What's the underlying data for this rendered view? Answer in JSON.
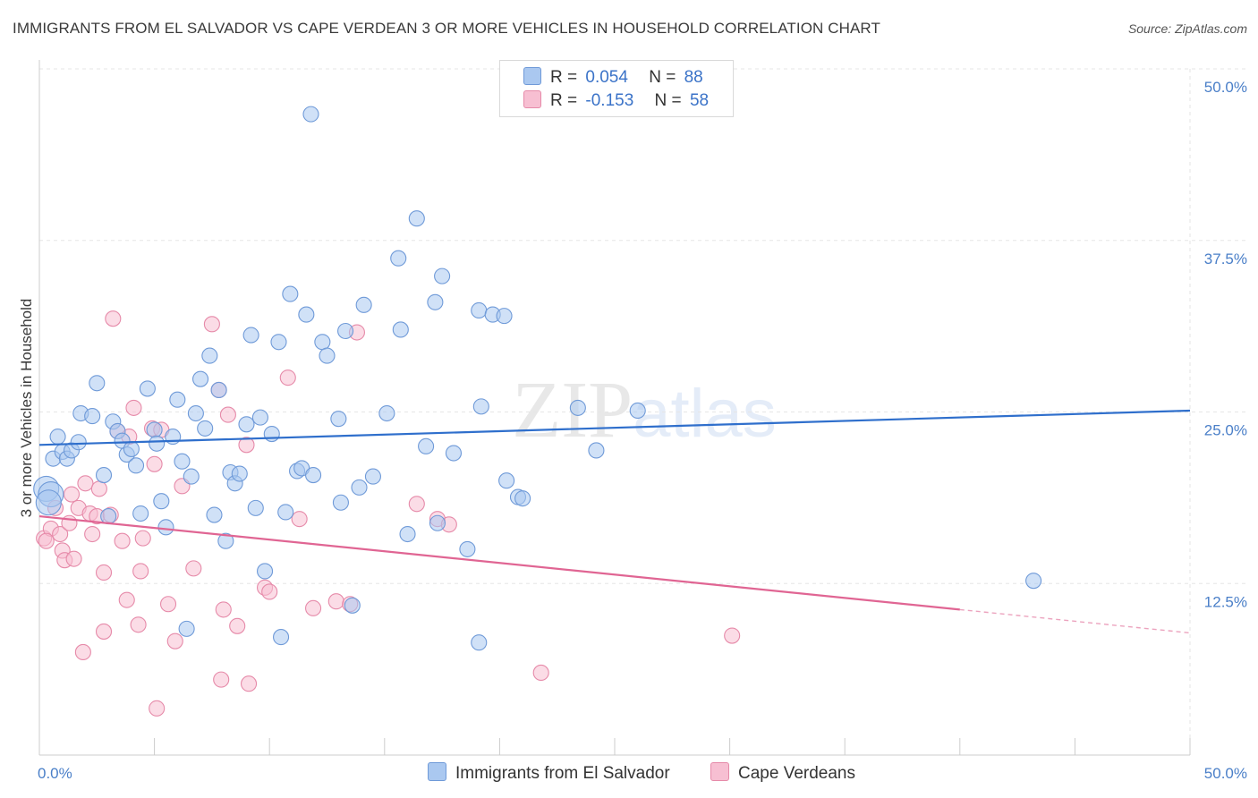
{
  "header": {
    "title": "IMMIGRANTS FROM EL SALVADOR VS CAPE VERDEAN 3 OR MORE VEHICLES IN HOUSEHOLD CORRELATION CHART",
    "source": "Source: ZipAtlas.com"
  },
  "watermark": "ZIPatlas",
  "legend": {
    "rows": [
      {
        "r_label": "R =",
        "r_value": "0.054",
        "n_label": "N =",
        "n_value": "88"
      },
      {
        "r_label": "R =",
        "r_value": "-0.153",
        "n_label": "N =",
        "n_value": "58"
      }
    ]
  },
  "colors": {
    "blue_fill": "#aac8f0",
    "blue_stroke": "#6f9ad8",
    "blue_line": "#2f6fcc",
    "pink_fill": "#f7bfd2",
    "pink_stroke": "#e68aa9",
    "pink_line": "#e06593",
    "grid": "#e6e6e6",
    "axis_text": "#4a7fc8"
  },
  "chart_data": {
    "type": "scatter",
    "title": "IMMIGRANTS FROM EL SALVADOR VS CAPE VERDEAN 3 OR MORE VEHICLES IN HOUSEHOLD CORRELATION CHART",
    "xlabel": "",
    "ylabel": "3 or more Vehicles in Household",
    "xlim": [
      0,
      50
    ],
    "ylim": [
      0,
      50
    ],
    "x_tick_labels": [
      "0.0%",
      "50.0%"
    ],
    "y_ticks": [
      12.5,
      25.0,
      37.5,
      50.0
    ],
    "y_tick_labels": [
      "12.5%",
      "25.0%",
      "37.5%",
      "50.0%"
    ],
    "grid": true,
    "legend_position": "top-center",
    "series": [
      {
        "name": "Immigrants from El Salvador",
        "color": "#aac8f0",
        "r": 0.054,
        "n": 88,
        "trend": {
          "x": [
            0,
            50
          ],
          "y": [
            22.6,
            25.1
          ]
        },
        "points": [
          [
            0.3,
            19.4
          ],
          [
            0.5,
            19.0
          ],
          [
            0.6,
            21.6
          ],
          [
            0.8,
            23.2
          ],
          [
            1.0,
            22.1
          ],
          [
            1.2,
            21.6
          ],
          [
            1.4,
            22.2
          ],
          [
            1.7,
            22.8
          ],
          [
            1.8,
            24.9
          ],
          [
            2.3,
            24.7
          ],
          [
            2.5,
            27.1
          ],
          [
            2.8,
            20.4
          ],
          [
            3.0,
            17.4
          ],
          [
            3.2,
            24.3
          ],
          [
            3.4,
            23.6
          ],
          [
            3.6,
            22.9
          ],
          [
            3.8,
            21.9
          ],
          [
            4.0,
            22.3
          ],
          [
            4.2,
            21.1
          ],
          [
            4.4,
            17.6
          ],
          [
            4.7,
            26.7
          ],
          [
            5.0,
            23.7
          ],
          [
            5.1,
            22.7
          ],
          [
            5.3,
            18.5
          ],
          [
            5.5,
            16.6
          ],
          [
            5.8,
            23.2
          ],
          [
            6.0,
            25.9
          ],
          [
            6.2,
            21.4
          ],
          [
            6.4,
            9.2
          ],
          [
            6.6,
            20.3
          ],
          [
            6.8,
            24.9
          ],
          [
            7.0,
            27.4
          ],
          [
            7.2,
            23.8
          ],
          [
            7.4,
            29.1
          ],
          [
            7.6,
            17.5
          ],
          [
            7.8,
            26.6
          ],
          [
            8.1,
            15.6
          ],
          [
            8.3,
            20.6
          ],
          [
            8.5,
            19.8
          ],
          [
            8.7,
            20.5
          ],
          [
            9.0,
            24.1
          ],
          [
            9.2,
            30.6
          ],
          [
            9.4,
            18.0
          ],
          [
            9.6,
            24.6
          ],
          [
            9.8,
            13.4
          ],
          [
            10.1,
            23.4
          ],
          [
            10.4,
            30.1
          ],
          [
            10.5,
            8.6
          ],
          [
            10.7,
            17.7
          ],
          [
            10.9,
            33.6
          ],
          [
            11.2,
            20.7
          ],
          [
            11.4,
            20.9
          ],
          [
            11.6,
            32.1
          ],
          [
            11.8,
            46.7
          ],
          [
            11.9,
            20.4
          ],
          [
            12.3,
            30.1
          ],
          [
            12.5,
            29.1
          ],
          [
            13.0,
            24.5
          ],
          [
            13.1,
            18.4
          ],
          [
            13.3,
            30.9
          ],
          [
            13.6,
            10.9
          ],
          [
            13.9,
            19.5
          ],
          [
            14.1,
            32.8
          ],
          [
            14.5,
            20.3
          ],
          [
            15.1,
            24.9
          ],
          [
            15.6,
            36.2
          ],
          [
            15.7,
            31.0
          ],
          [
            16.0,
            16.1
          ],
          [
            16.4,
            39.1
          ],
          [
            16.8,
            22.5
          ],
          [
            17.2,
            33.0
          ],
          [
            17.3,
            16.9
          ],
          [
            17.5,
            34.9
          ],
          [
            18.0,
            22.0
          ],
          [
            18.6,
            15.0
          ],
          [
            19.1,
            8.2
          ],
          [
            19.2,
            25.4
          ],
          [
            19.1,
            32.4
          ],
          [
            19.7,
            32.1
          ],
          [
            20.2,
            32.0
          ],
          [
            20.3,
            20.0
          ],
          [
            20.8,
            18.8
          ],
          [
            21.0,
            18.7
          ],
          [
            23.4,
            25.3
          ],
          [
            24.2,
            22.2
          ],
          [
            26.0,
            25.1
          ],
          [
            43.2,
            12.7
          ],
          [
            0.4,
            18.4
          ]
        ]
      },
      {
        "name": "Cape Verdeans",
        "color": "#f7bfd2",
        "r": -0.153,
        "n": 58,
        "trend": {
          "x": [
            0,
            40
          ],
          "y": [
            17.4,
            10.6
          ]
        },
        "trend_dashed": {
          "x": [
            40,
            50
          ],
          "y": [
            10.6,
            8.9
          ]
        },
        "points": [
          [
            0.2,
            15.8
          ],
          [
            0.5,
            16.5
          ],
          [
            0.7,
            18.0
          ],
          [
            0.9,
            16.1
          ],
          [
            1.0,
            14.9
          ],
          [
            1.1,
            14.2
          ],
          [
            1.3,
            16.9
          ],
          [
            1.4,
            19.0
          ],
          [
            1.5,
            14.3
          ],
          [
            1.7,
            18.0
          ],
          [
            1.9,
            7.5
          ],
          [
            2.0,
            19.8
          ],
          [
            2.2,
            17.6
          ],
          [
            2.3,
            16.1
          ],
          [
            2.5,
            17.4
          ],
          [
            2.6,
            19.4
          ],
          [
            2.8,
            13.3
          ],
          [
            2.8,
            9.0
          ],
          [
            3.1,
            17.5
          ],
          [
            3.2,
            31.8
          ],
          [
            3.4,
            23.6
          ],
          [
            3.6,
            15.6
          ],
          [
            3.8,
            11.3
          ],
          [
            3.9,
            23.2
          ],
          [
            4.1,
            25.3
          ],
          [
            4.3,
            9.5
          ],
          [
            4.4,
            13.4
          ],
          [
            4.5,
            15.8
          ],
          [
            4.9,
            23.8
          ],
          [
            5.0,
            21.2
          ],
          [
            5.1,
            3.4
          ],
          [
            5.3,
            23.7
          ],
          [
            5.6,
            11.0
          ],
          [
            5.9,
            8.3
          ],
          [
            6.2,
            19.6
          ],
          [
            6.7,
            13.6
          ],
          [
            7.5,
            31.4
          ],
          [
            7.8,
            26.6
          ],
          [
            7.9,
            5.5
          ],
          [
            8.0,
            10.6
          ],
          [
            8.2,
            24.8
          ],
          [
            8.6,
            9.4
          ],
          [
            9.0,
            22.6
          ],
          [
            9.1,
            5.2
          ],
          [
            9.8,
            12.2
          ],
          [
            10.0,
            11.9
          ],
          [
            10.8,
            27.5
          ],
          [
            11.3,
            17.2
          ],
          [
            11.9,
            10.7
          ],
          [
            12.9,
            11.2
          ],
          [
            13.5,
            11.0
          ],
          [
            13.8,
            30.8
          ],
          [
            16.4,
            18.3
          ],
          [
            17.3,
            17.2
          ],
          [
            17.8,
            16.8
          ],
          [
            21.8,
            6.0
          ],
          [
            30.1,
            8.7
          ],
          [
            0.3,
            15.6
          ]
        ]
      }
    ]
  },
  "bottom_legend": {
    "series1": "Immigrants from El Salvador",
    "series2": "Cape Verdeans"
  }
}
